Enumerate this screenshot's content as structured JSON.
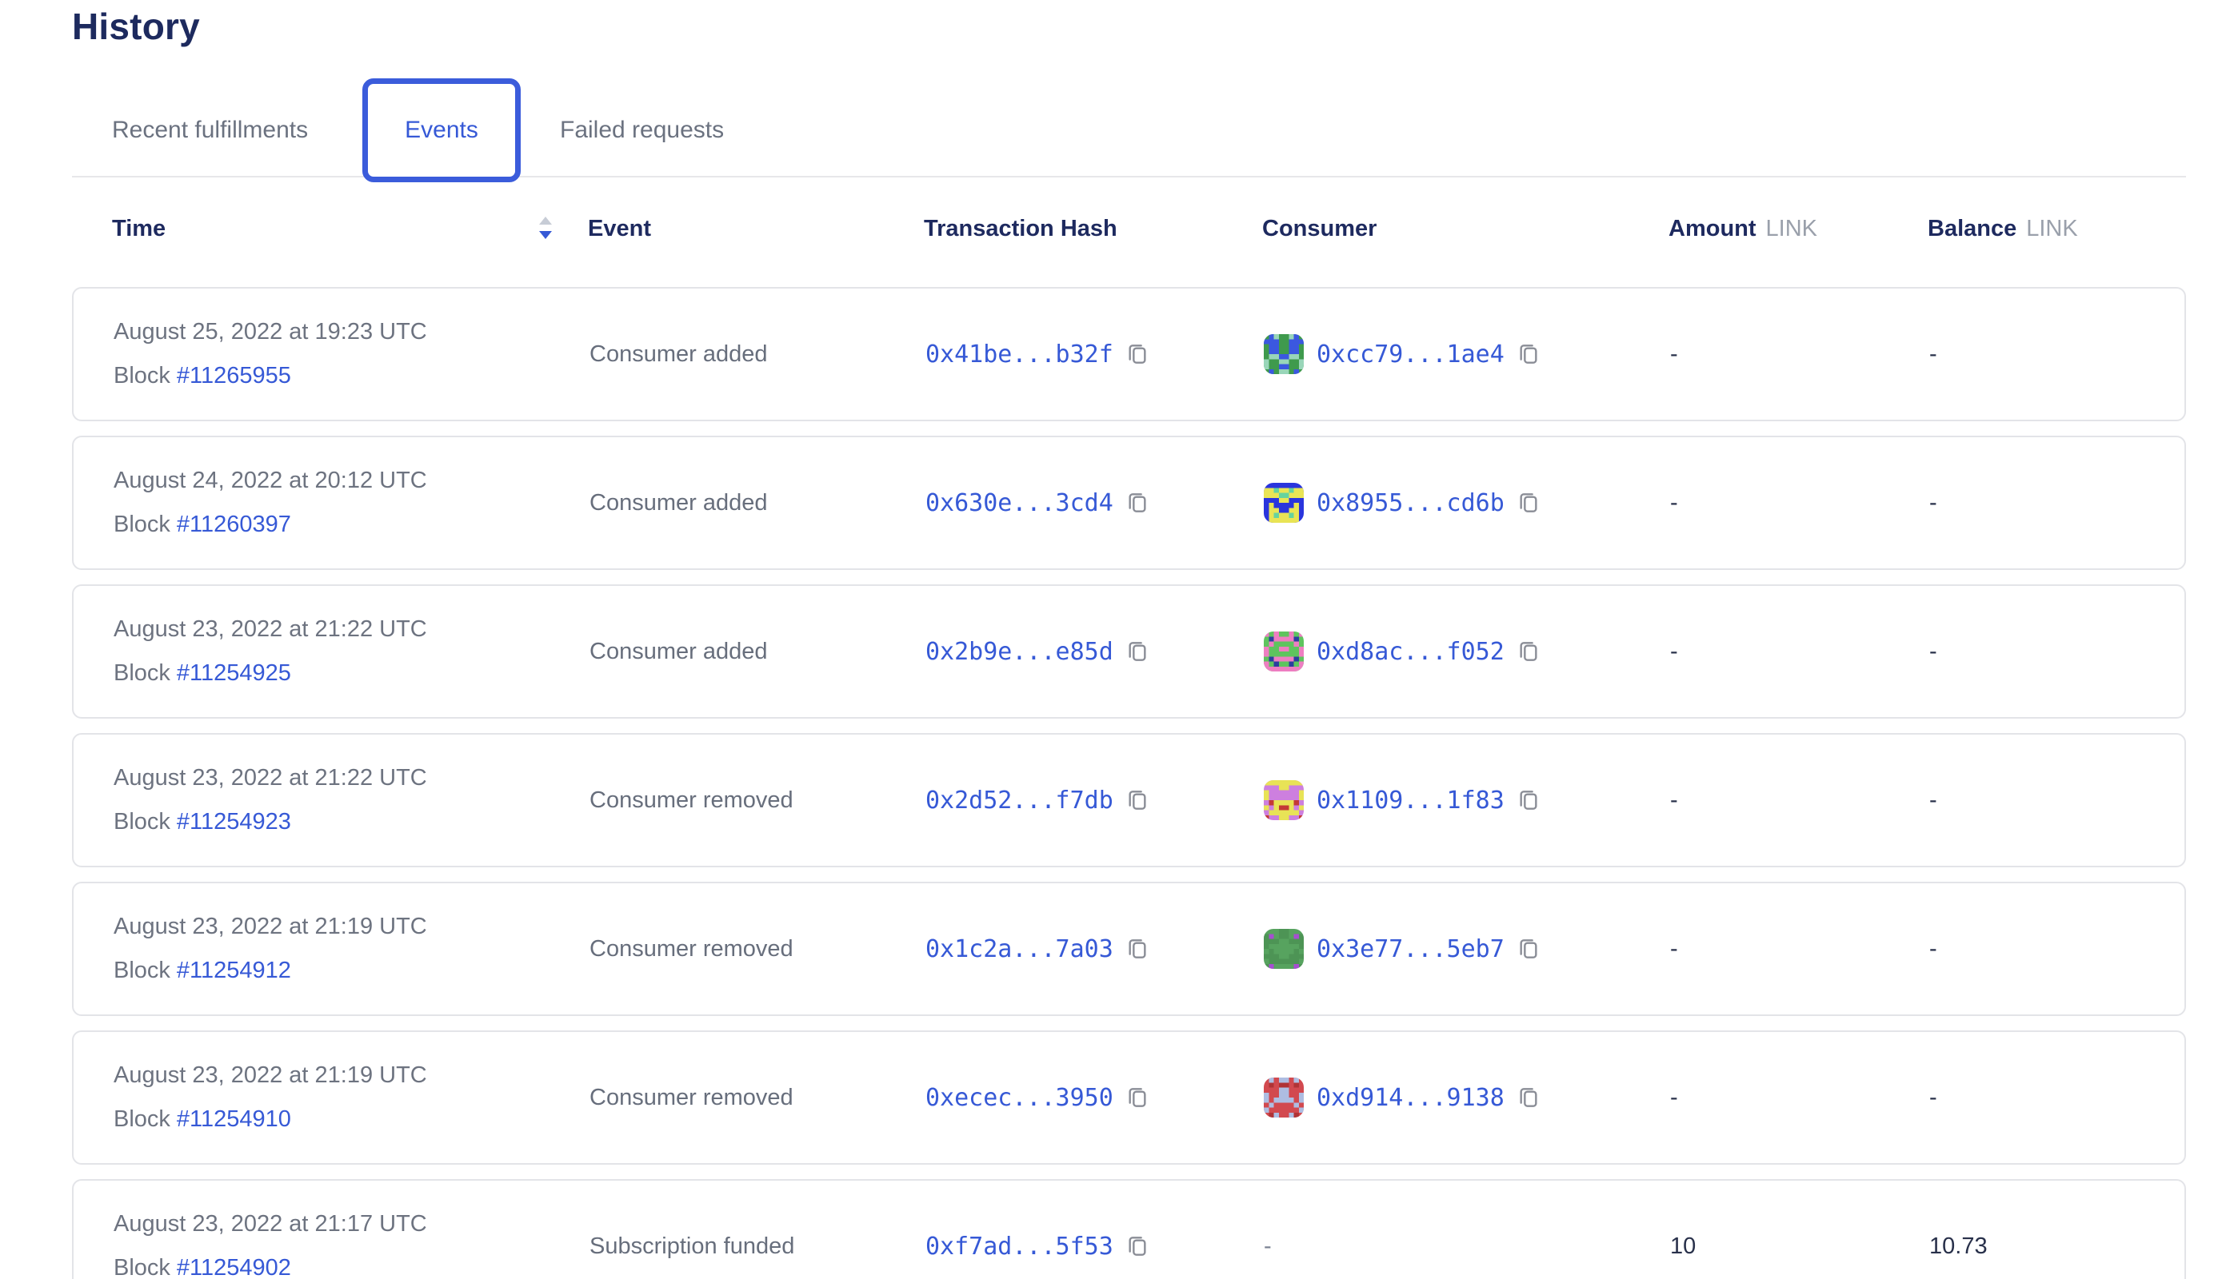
{
  "page": {
    "title": "History"
  },
  "tabs": [
    {
      "label": "Recent fulfillments",
      "active": false
    },
    {
      "label": "Events",
      "active": true
    },
    {
      "label": "Failed requests",
      "active": false
    }
  ],
  "table": {
    "headers": {
      "time": "Time",
      "event": "Event",
      "tx_hash": "Transaction Hash",
      "consumer": "Consumer",
      "amount": "Amount",
      "balance": "Balance",
      "unit": "LINK"
    },
    "block_prefix": "Block",
    "empty_value": "-",
    "sort": {
      "column": "time",
      "direction": "descending"
    },
    "rows": [
      {
        "date": "August 25, 2022 at 19:23 UTC",
        "block": "#11265955",
        "event": "Consumer added",
        "tx_hash": "0x41be...b32f",
        "consumer": "0xcc79...1ae4",
        "avatar": {
          "bg": "#3f9a4d",
          "fg": "#3b58e0",
          "spot": "#99d6b9"
        },
        "amount": "-",
        "balance": "-"
      },
      {
        "date": "August 24, 2022 at 20:12 UTC",
        "block": "#11260397",
        "event": "Consumer added",
        "tx_hash": "0x630e...3cd4",
        "consumer": "0x8955...cd6b",
        "avatar": {
          "bg": "#2a35dd",
          "fg": "#e9e455",
          "spot": "#66d39e"
        },
        "amount": "-",
        "balance": "-"
      },
      {
        "date": "August 23, 2022 at 21:22 UTC",
        "block": "#11254925",
        "event": "Consumer added",
        "tx_hash": "0x2b9e...e85d",
        "consumer": "0xd8ac...f052",
        "avatar": {
          "bg": "#5ec45e",
          "fg": "#ee7ec2",
          "spot": "#2b3f9e"
        },
        "amount": "-",
        "balance": "-"
      },
      {
        "date": "August 23, 2022 at 21:22 UTC",
        "block": "#11254923",
        "event": "Consumer removed",
        "tx_hash": "0x2d52...f7db",
        "consumer": "0x1109...1f83",
        "avatar": {
          "bg": "#cd7fdf",
          "fg": "#e8e356",
          "spot": "#c43a36"
        },
        "amount": "-",
        "balance": "-"
      },
      {
        "date": "August 23, 2022 at 21:19 UTC",
        "block": "#11254912",
        "event": "Consumer removed",
        "tx_hash": "0x1c2a...7a03",
        "consumer": "0x3e77...5eb7",
        "avatar": {
          "bg": "#57a35f",
          "fg": "#4d9455",
          "spot": "#a64fd0"
        },
        "amount": "-",
        "balance": "-"
      },
      {
        "date": "August 23, 2022 at 21:19 UTC",
        "block": "#11254910",
        "event": "Consumer removed",
        "tx_hash": "0xecec...3950",
        "consumer": "0xd914...9138",
        "avatar": {
          "bg": "#d2494f",
          "fg": "#aebde2",
          "spot": "#b03336"
        },
        "amount": "-",
        "balance": "-"
      },
      {
        "date": "August 23, 2022 at 21:17 UTC",
        "block": "#11254902",
        "event": "Subscription funded",
        "tx_hash": "0xf7ad...5f53",
        "consumer": null,
        "avatar": null,
        "amount": "10",
        "balance": "10.73"
      }
    ]
  },
  "colors": {
    "accent_blue": "#3659d6",
    "tab_border_blue": "#3b5cdb",
    "navy_heading": "#1e2a5f",
    "gray_text": "#6d7380",
    "unit_gray": "#9aa0ab",
    "card_border": "#e3e4e8",
    "sort_inactive": "#c7ccd6",
    "copy_icon_gray": "#8a8d96"
  }
}
